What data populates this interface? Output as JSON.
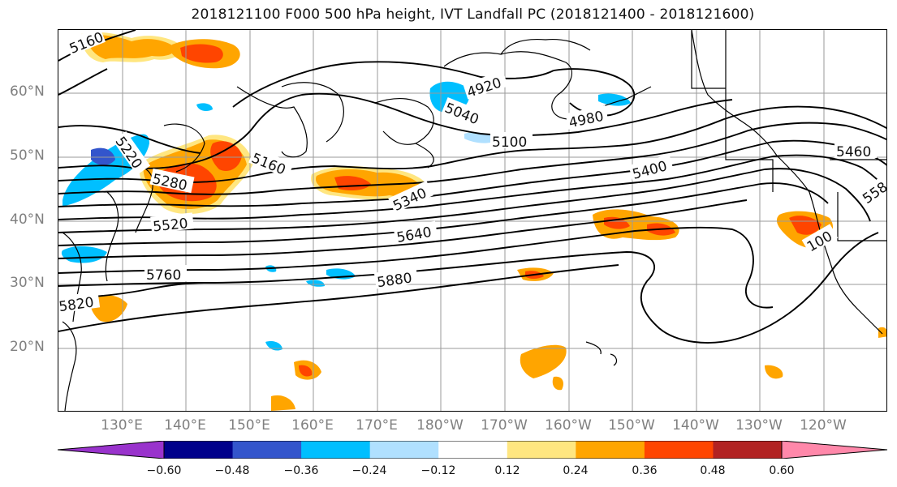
{
  "title": "2018121100 F000 500 hPa height, IVT Landfall PC (2018121400 - 2018121600)",
  "lat_labels": [
    "60°N",
    "50°N",
    "40°N",
    "30°N",
    "20°N"
  ],
  "lon_labels": [
    "130°E",
    "140°E",
    "150°E",
    "160°E",
    "170°E",
    "180°W",
    "170°W",
    "160°W",
    "150°W",
    "140°W",
    "130°W",
    "120°W"
  ],
  "contour_labels": {
    "c5160a": "5160",
    "c4920": "4920",
    "c5040": "5040",
    "c4980": "4980",
    "c5100": "5100",
    "c5220": "5220",
    "c5160b": "5160",
    "c5280": "5280",
    "c5340": "5340",
    "c5400": "5400",
    "c5460": "5460",
    "c5580": "558",
    "c5520": "5520",
    "c5640": "5640",
    "c5760": "5760",
    "c5880": "5880",
    "c5820": "5820",
    "c5700": "100"
  },
  "colorbar": {
    "tick_labels": [
      "−0.60",
      "−0.48",
      "−0.36",
      "−0.24",
      "−0.12",
      "0.12",
      "0.24",
      "0.36",
      "0.48",
      "0.60"
    ],
    "colors": [
      "#9933cc",
      "#00008b",
      "#3355cc",
      "#00bfff",
      "#b0e0ff",
      "#ffffff",
      "#ffe680",
      "#ffa500",
      "#ff4500",
      "#b22222",
      "#ff88aa"
    ]
  }
}
